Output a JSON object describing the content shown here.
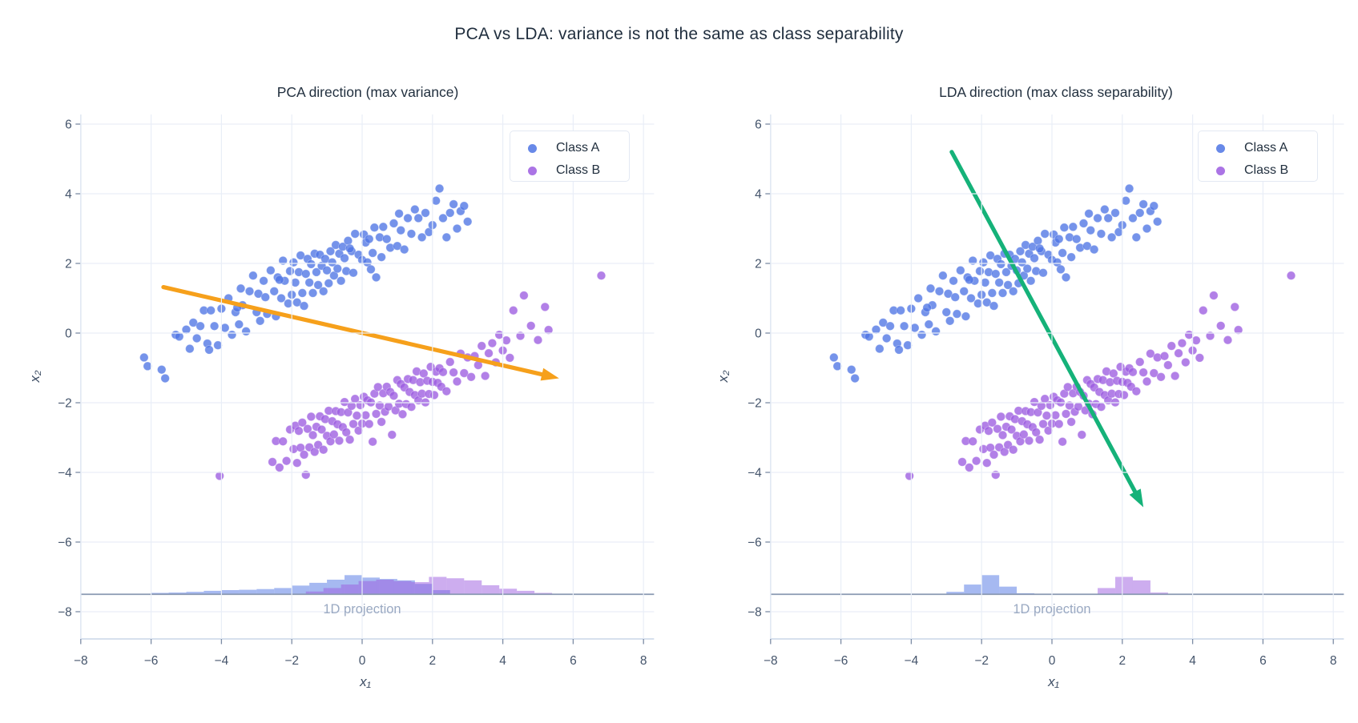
{
  "chart_data": {
    "type": "scatter",
    "title": "PCA vs LDA: variance is not the same as class separability",
    "grid": true,
    "background": "#ffffff",
    "colors": {
      "grid": "#e9eef7",
      "spine": "#c9d5e7",
      "tick_mark": "#7c8ca5",
      "tick_text": "#44546b",
      "title_text": "#1f2d3d",
      "projection_baseline": "#8a99b2",
      "muted_label": "#9aa9c2",
      "legend_border": "#e3e9f3"
    },
    "series": [
      {
        "name": "Class A",
        "color": "#4e74e4",
        "points": [
          [
            -6.2,
            -0.7
          ],
          [
            -6.1,
            -0.95
          ],
          [
            -5.7,
            -1.05
          ],
          [
            -5.3,
            -0.05
          ],
          [
            -5.2,
            -0.1
          ],
          [
            -5.0,
            0.1
          ],
          [
            -4.9,
            -0.45
          ],
          [
            -4.8,
            0.3
          ],
          [
            -4.7,
            -0.15
          ],
          [
            -4.6,
            0.2
          ],
          [
            -4.5,
            0.65
          ],
          [
            -4.4,
            -0.3
          ],
          [
            -4.3,
            0.65
          ],
          [
            -4.2,
            0.2
          ],
          [
            -4.1,
            -0.35
          ],
          [
            -4.0,
            0.7
          ],
          [
            -3.9,
            0.15
          ],
          [
            -3.8,
            1.0
          ],
          [
            -3.7,
            -0.05
          ],
          [
            -3.6,
            0.6
          ],
          [
            -3.5,
            0.25
          ],
          [
            -3.45,
            1.28
          ],
          [
            -3.4,
            0.8
          ],
          [
            -3.3,
            0.05
          ],
          [
            -3.2,
            1.2
          ],
          [
            -3.1,
            1.65
          ],
          [
            -3.0,
            0.6
          ],
          [
            -2.95,
            1.13
          ],
          [
            -2.9,
            0.35
          ],
          [
            -2.8,
            1.5
          ],
          [
            -2.75,
            1.03
          ],
          [
            -2.7,
            0.55
          ],
          [
            -2.6,
            1.8
          ],
          [
            -2.5,
            1.2
          ],
          [
            -2.45,
            0.48
          ],
          [
            -2.4,
            1.6
          ],
          [
            -2.3,
            1.0
          ],
          [
            -2.25,
            2.08
          ],
          [
            -2.2,
            1.5
          ],
          [
            -2.1,
            0.85
          ],
          [
            -2.05,
            1.78
          ],
          [
            -2.0,
            1.1
          ],
          [
            -1.95,
            2.03
          ],
          [
            -1.9,
            1.45
          ],
          [
            -1.85,
            0.88
          ],
          [
            -1.8,
            1.75
          ],
          [
            -1.75,
            2.23
          ],
          [
            -1.7,
            1.15
          ],
          [
            -1.6,
            1.7
          ],
          [
            -1.55,
            2.13
          ],
          [
            -1.5,
            1.45
          ],
          [
            -1.45,
            1.98
          ],
          [
            -1.4,
            1.15
          ],
          [
            -1.35,
            2.28
          ],
          [
            -1.3,
            1.75
          ],
          [
            -1.25,
            1.38
          ],
          [
            -1.2,
            2.25
          ],
          [
            -1.15,
            1.93
          ],
          [
            -1.1,
            1.2
          ],
          [
            -1.05,
            2.13
          ],
          [
            -1.0,
            1.8
          ],
          [
            -0.95,
            1.43
          ],
          [
            -0.9,
            2.35
          ],
          [
            -0.85,
            2.03
          ],
          [
            -0.8,
            1.65
          ],
          [
            -0.75,
            2.53
          ],
          [
            -0.7,
            1.85
          ],
          [
            -0.65,
            2.28
          ],
          [
            -0.6,
            1.5
          ],
          [
            -0.55,
            2.48
          ],
          [
            -0.5,
            2.15
          ],
          [
            -0.45,
            1.78
          ],
          [
            -0.4,
            2.65
          ],
          [
            -0.3,
            2.35
          ],
          [
            -0.25,
            1.73
          ],
          [
            -0.2,
            2.85
          ],
          [
            -0.1,
            2.25
          ],
          [
            0.0,
            2.1
          ],
          [
            0.05,
            2.83
          ],
          [
            0.1,
            2.6
          ],
          [
            0.15,
            2.03
          ],
          [
            0.2,
            2.7
          ],
          [
            0.3,
            2.3
          ],
          [
            0.35,
            3.03
          ],
          [
            0.4,
            1.6
          ],
          [
            0.5,
            2.75
          ],
          [
            0.55,
            2.18
          ],
          [
            0.6,
            3.05
          ],
          [
            0.7,
            2.7
          ],
          [
            0.8,
            2.45
          ],
          [
            0.9,
            3.15
          ],
          [
            1.0,
            2.5
          ],
          [
            1.05,
            3.43
          ],
          [
            1.1,
            2.95
          ],
          [
            1.2,
            2.4
          ],
          [
            1.3,
            3.3
          ],
          [
            1.4,
            2.85
          ],
          [
            1.5,
            3.55
          ],
          [
            1.6,
            3.3
          ],
          [
            1.7,
            2.75
          ],
          [
            1.8,
            3.45
          ],
          [
            1.9,
            2.9
          ],
          [
            2.0,
            3.1
          ],
          [
            2.1,
            3.8
          ],
          [
            2.2,
            4.15
          ],
          [
            2.3,
            3.3
          ],
          [
            2.4,
            2.75
          ],
          [
            2.5,
            3.45
          ],
          [
            2.6,
            3.7
          ],
          [
            2.7,
            3.0
          ],
          [
            2.8,
            3.5
          ],
          [
            2.9,
            3.65
          ],
          [
            3.0,
            3.2
          ],
          [
            -2.35,
            1.53
          ],
          [
            -1.65,
            0.78
          ],
          [
            -0.35,
            2.43
          ],
          [
            0.25,
            1.83
          ],
          [
            -3.55,
            0.73
          ],
          [
            -4.35,
            -0.48
          ],
          [
            -5.6,
            -1.3
          ]
        ]
      },
      {
        "name": "Class B",
        "color": "#9c5ce0",
        "points": [
          [
            -4.05,
            -4.1
          ],
          [
            -2.55,
            -3.7
          ],
          [
            -2.45,
            -3.1
          ],
          [
            -2.35,
            -3.86
          ],
          [
            -2.25,
            -3.11
          ],
          [
            -2.15,
            -3.67
          ],
          [
            -2.05,
            -2.77
          ],
          [
            -1.95,
            -3.33
          ],
          [
            -1.9,
            -2.66
          ],
          [
            -1.85,
            -3.73
          ],
          [
            -1.8,
            -2.81
          ],
          [
            -1.75,
            -3.29
          ],
          [
            -1.7,
            -2.57
          ],
          [
            -1.65,
            -3.49
          ],
          [
            -1.6,
            -4.07
          ],
          [
            -1.55,
            -2.75
          ],
          [
            -1.5,
            -3.28
          ],
          [
            -1.45,
            -2.4
          ],
          [
            -1.4,
            -2.93
          ],
          [
            -1.35,
            -3.41
          ],
          [
            -1.3,
            -2.69
          ],
          [
            -1.25,
            -3.21
          ],
          [
            -1.2,
            -2.39
          ],
          [
            -1.15,
            -2.77
          ],
          [
            -1.1,
            -3.35
          ],
          [
            -1.05,
            -2.47
          ],
          [
            -1.0,
            -2.95
          ],
          [
            -0.95,
            -2.23
          ],
          [
            -0.9,
            -3.11
          ],
          [
            -0.85,
            -2.53
          ],
          [
            -0.8,
            -2.91
          ],
          [
            -0.75,
            -2.24
          ],
          [
            -0.7,
            -2.62
          ],
          [
            -0.65,
            -3.09
          ],
          [
            -0.6,
            -2.27
          ],
          [
            -0.55,
            -2.7
          ],
          [
            -0.5,
            -1.98
          ],
          [
            -0.45,
            -2.85
          ],
          [
            -0.4,
            -2.28
          ],
          [
            -0.35,
            -3.06
          ],
          [
            -0.3,
            -2.09
          ],
          [
            -0.25,
            -2.61
          ],
          [
            -0.2,
            -1.89
          ],
          [
            -0.15,
            -2.37
          ],
          [
            -0.1,
            -2.8
          ],
          [
            -0.05,
            -2.07
          ],
          [
            0.0,
            -2.6
          ],
          [
            0.05,
            -1.83
          ],
          [
            0.1,
            -2.36
          ],
          [
            0.15,
            -1.93
          ],
          [
            0.2,
            -2.61
          ],
          [
            0.25,
            -1.99
          ],
          [
            0.3,
            -3.12
          ],
          [
            0.35,
            -1.74
          ],
          [
            0.4,
            -2.32
          ],
          [
            0.45,
            -1.55
          ],
          [
            0.5,
            -2.08
          ],
          [
            0.55,
            -2.55
          ],
          [
            0.6,
            -1.73
          ],
          [
            0.65,
            -2.26
          ],
          [
            0.7,
            -1.54
          ],
          [
            0.75,
            -2.11
          ],
          [
            0.8,
            -1.69
          ],
          [
            0.85,
            -2.92
          ],
          [
            0.9,
            -1.8
          ],
          [
            0.95,
            -2.22
          ],
          [
            1.0,
            -1.35
          ],
          [
            1.05,
            -2.03
          ],
          [
            1.1,
            -1.46
          ],
          [
            1.15,
            -2.33
          ],
          [
            1.2,
            -1.56
          ],
          [
            1.25,
            -2.04
          ],
          [
            1.3,
            -1.32
          ],
          [
            1.35,
            -1.69
          ],
          [
            1.4,
            -2.12
          ],
          [
            1.45,
            -1.35
          ],
          [
            1.5,
            -1.78
          ],
          [
            1.55,
            -1.1
          ],
          [
            1.6,
            -1.93
          ],
          [
            1.65,
            -1.41
          ],
          [
            1.7,
            -1.74
          ],
          [
            1.75,
            -1.16
          ],
          [
            1.8,
            -1.99
          ],
          [
            1.85,
            -1.37
          ],
          [
            1.9,
            -1.75
          ],
          [
            1.95,
            -0.97
          ],
          [
            2.0,
            -1.4
          ],
          [
            2.05,
            -1.78
          ],
          [
            2.1,
            -1.11
          ],
          [
            2.15,
            -1.43
          ],
          [
            2.2,
            -1.01
          ],
          [
            2.25,
            -1.54
          ],
          [
            2.3,
            -1.12
          ],
          [
            2.4,
            -1.67
          ],
          [
            2.5,
            -0.83
          ],
          [
            2.6,
            -1.13
          ],
          [
            2.7,
            -1.39
          ],
          [
            2.8,
            -0.59
          ],
          [
            2.9,
            -1.15
          ],
          [
            3.0,
            -0.7
          ],
          [
            3.1,
            -1.26
          ],
          [
            3.2,
            -0.66
          ],
          [
            3.3,
            -0.92
          ],
          [
            3.4,
            -0.37
          ],
          [
            3.5,
            -1.23
          ],
          [
            3.6,
            -0.58
          ],
          [
            3.7,
            -0.29
          ],
          [
            3.8,
            -0.84
          ],
          [
            3.9,
            -0.05
          ],
          [
            4.0,
            -0.5
          ],
          [
            4.1,
            -0.21
          ],
          [
            4.2,
            -0.71
          ],
          [
            4.3,
            0.65
          ],
          [
            4.5,
            -0.08
          ],
          [
            4.6,
            1.08
          ],
          [
            4.8,
            0.21
          ],
          [
            5.0,
            -0.2
          ],
          [
            5.2,
            0.75
          ],
          [
            5.3,
            0.09
          ],
          [
            6.8,
            1.65
          ]
        ]
      }
    ],
    "subplots": [
      {
        "title": "PCA direction (max variance)",
        "xlabel": "x₁",
        "ylabel": "x₂",
        "xticks": [
          -8,
          -6,
          -4,
          -2,
          0,
          2,
          4,
          6,
          8
        ],
        "yticks": [
          6,
          4,
          2,
          0,
          -2,
          -4,
          -6,
          -8
        ],
        "xlim": [
          -8,
          8.3
        ],
        "ylim": [
          -8.8,
          6.3
        ],
        "legend": {
          "position": "upper right",
          "entries": [
            "Class A",
            "Class B"
          ]
        },
        "arrow": {
          "name": "pca-direction-arrow",
          "color": "#f6a01b",
          "from": [
            -5.65,
            1.32
          ],
          "to": [
            5.6,
            -1.3
          ]
        },
        "projection_label": "1D projection",
        "projection_baseline_y": -7.5,
        "histograms": [
          {
            "class": "Class A",
            "bin_start": -6.0,
            "bin_width": 0.5,
            "heights": [
              0.04,
              0.05,
              0.07,
              0.1,
              0.12,
              0.13,
              0.15,
              0.18,
              0.25,
              0.33,
              0.42,
              0.55,
              0.48,
              0.44,
              0.4,
              0.3,
              0.12
            ]
          },
          {
            "class": "Class B",
            "bin_start": -1.6,
            "bin_width": 0.5,
            "heights": [
              0.08,
              0.18,
              0.28,
              0.38,
              0.42,
              0.38,
              0.35,
              0.5,
              0.46,
              0.4,
              0.26,
              0.16,
              0.1,
              0.04
            ]
          }
        ]
      },
      {
        "title": "LDA direction (max class separability)",
        "xlabel": "x₁",
        "ylabel": "x₂",
        "xticks": [
          -8,
          -6,
          -4,
          -2,
          0,
          2,
          4,
          6,
          8
        ],
        "yticks": [
          6,
          4,
          2,
          0,
          -2,
          -4,
          -6,
          -8
        ],
        "xlim": [
          -8,
          8.3
        ],
        "ylim": [
          -8.8,
          6.3
        ],
        "legend": {
          "position": "upper right",
          "entries": [
            "Class A",
            "Class B"
          ]
        },
        "arrow": {
          "name": "lda-direction-arrow",
          "color": "#15b279",
          "from": [
            -2.85,
            5.2
          ],
          "to": [
            2.6,
            -5.0
          ]
        },
        "projection_label": "1D projection",
        "projection_baseline_y": -7.5,
        "histograms": [
          {
            "class": "Class A",
            "bin_start": -3.0,
            "bin_width": 0.5,
            "heights": [
              0.07,
              0.28,
              0.55,
              0.22,
              0.03
            ]
          },
          {
            "class": "Class B",
            "bin_start": 1.3,
            "bin_width": 0.5,
            "heights": [
              0.18,
              0.5,
              0.4,
              0.05
            ]
          }
        ]
      }
    ]
  }
}
